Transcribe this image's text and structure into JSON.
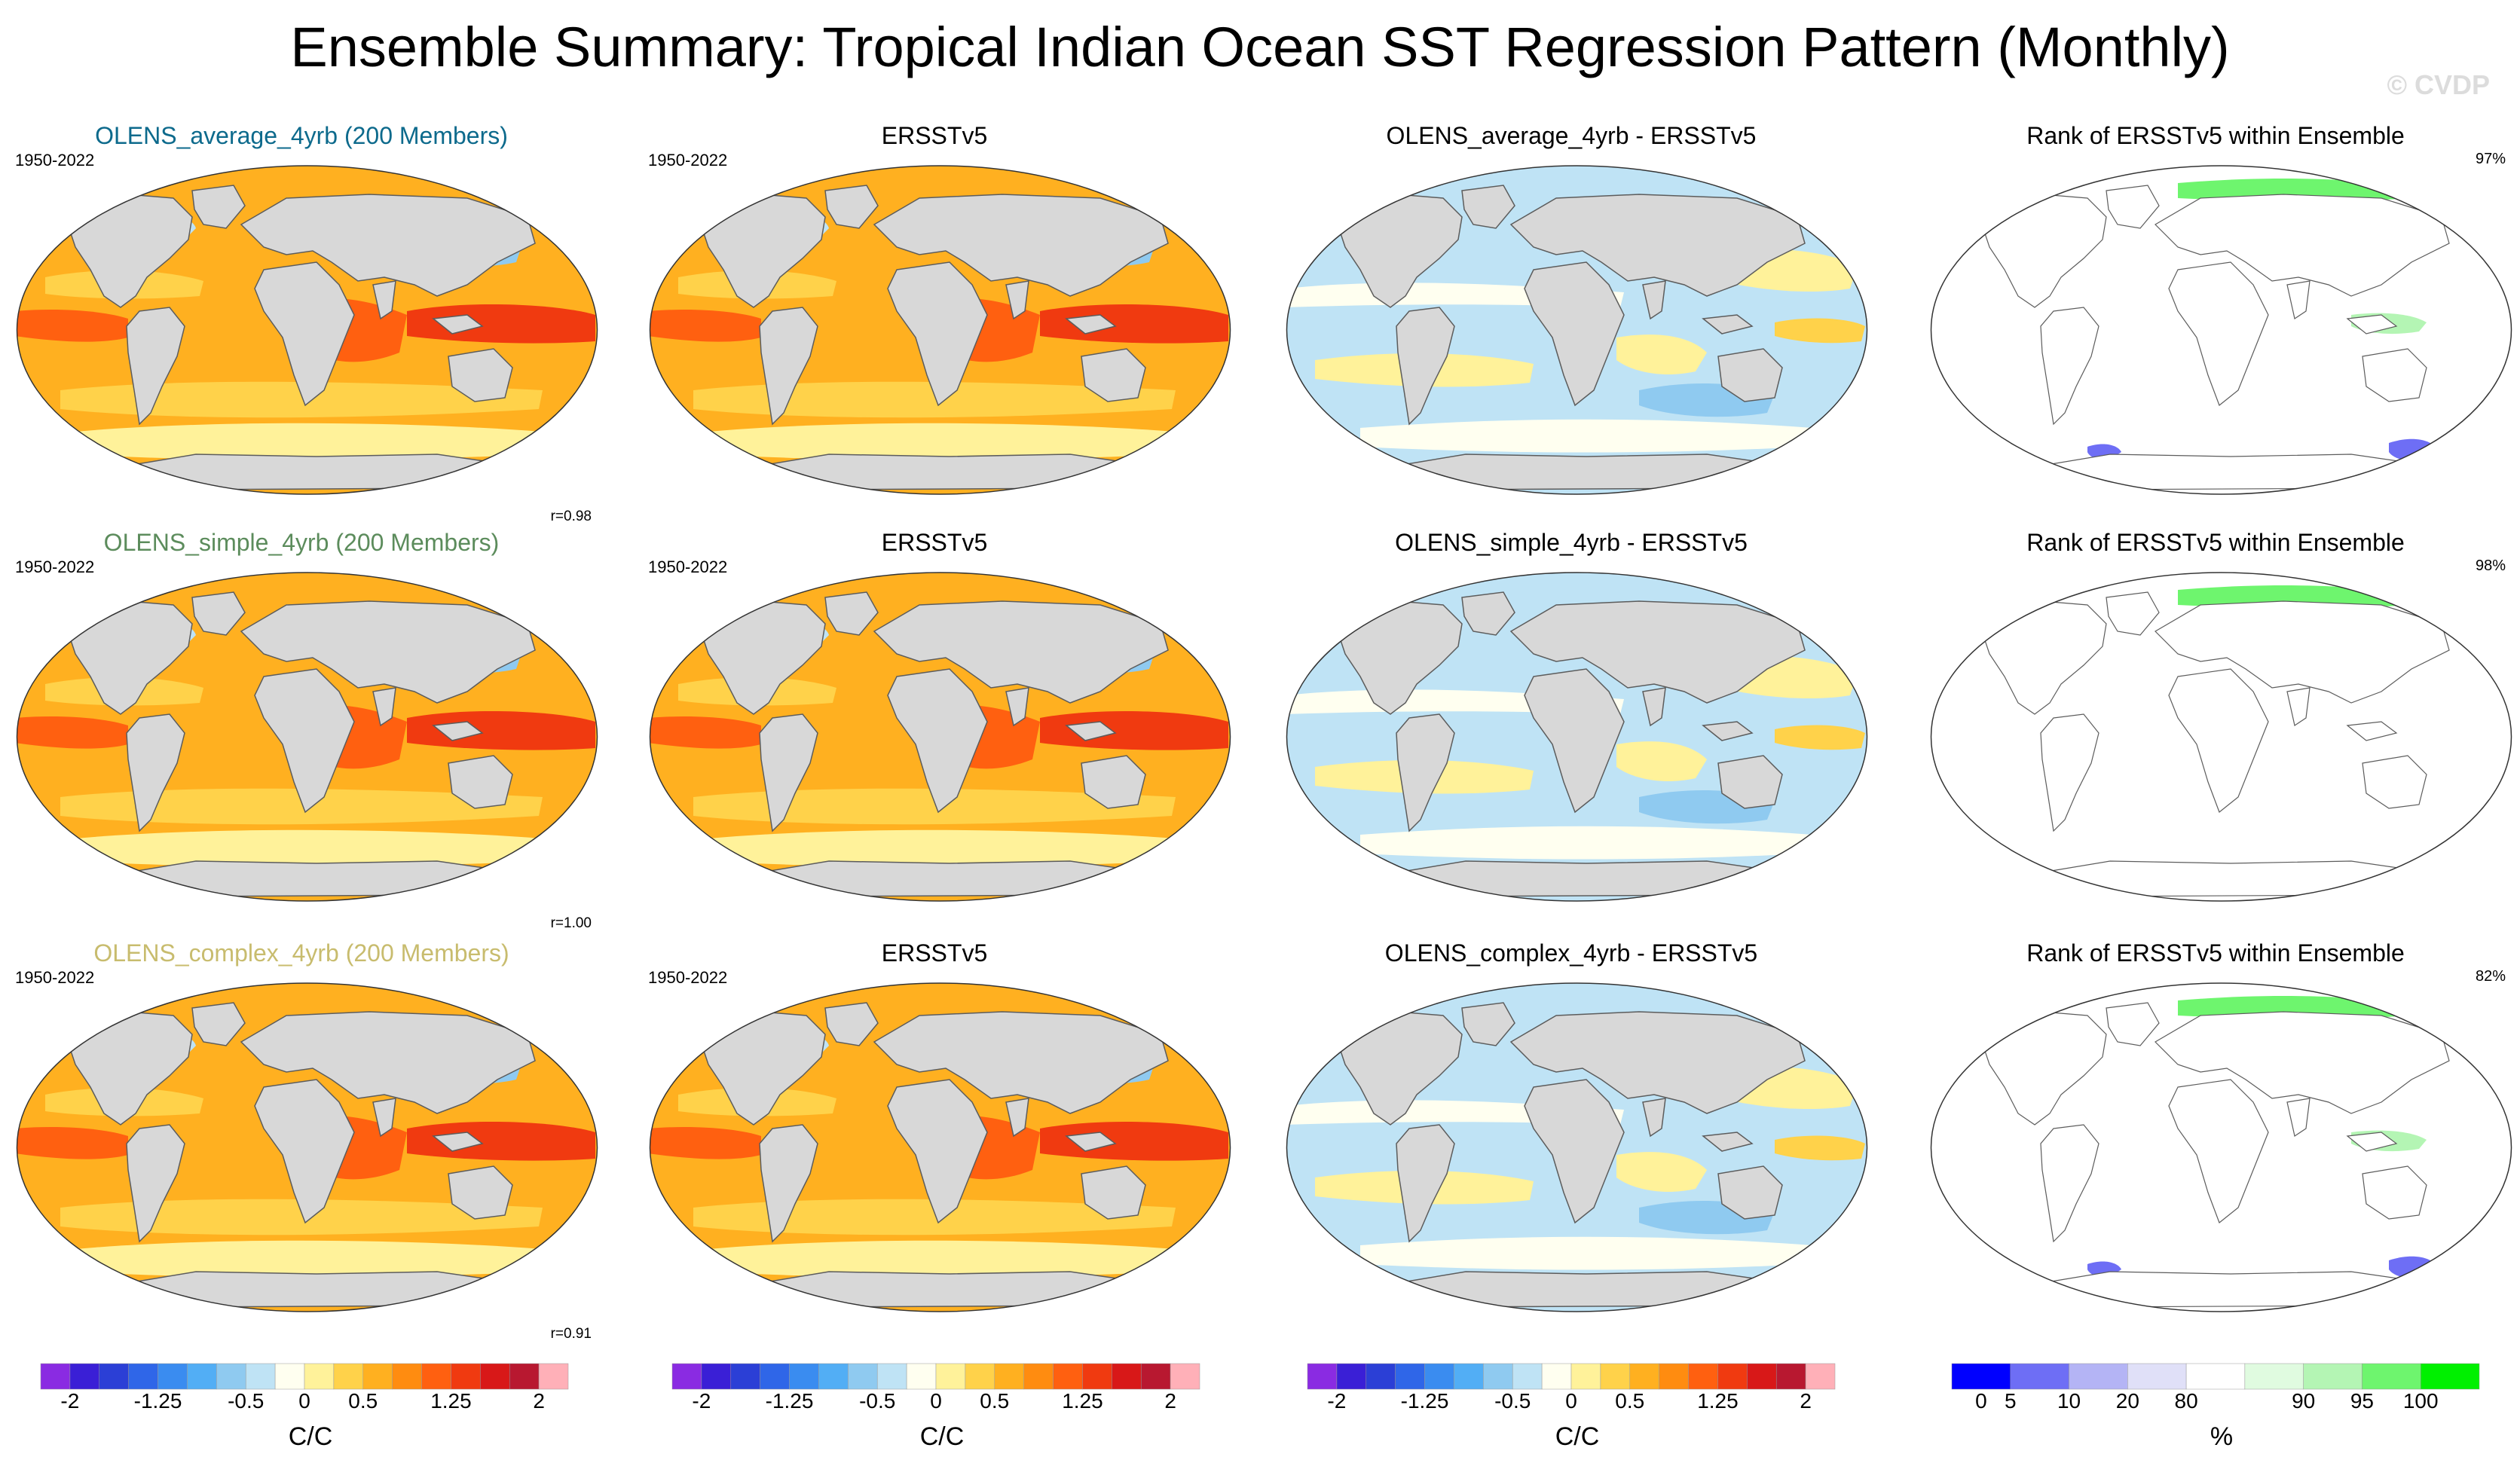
{
  "title": "Ensemble Summary: Tropical Indian Ocean SST Regression Pattern (Monthly)",
  "watermark": "© CVDP",
  "period": "1950-2022",
  "rows": [
    {
      "model": {
        "title": "OLENS_average_4yrb (200 Members)",
        "title_color": "#0d6a8c",
        "corr": "r=0.98"
      },
      "obs": {
        "title": "ERSSTv5"
      },
      "diff": {
        "title": "OLENS_average_4yrb - ERSSTv5"
      },
      "rank": {
        "title": "Rank of ERSSTv5 within Ensemble",
        "percent": "97%"
      }
    },
    {
      "model": {
        "title": "OLENS_simple_4yrb (200 Members)",
        "title_color": "#5c8c5c",
        "corr": "r=1.00"
      },
      "obs": {
        "title": "ERSSTv5"
      },
      "diff": {
        "title": "OLENS_simple_4yrb - ERSSTv5"
      },
      "rank": {
        "title": "Rank of ERSSTv5 within Ensemble",
        "percent": "98%"
      }
    },
    {
      "model": {
        "title": "OLENS_complex_4yrb (200 Members)",
        "title_color": "#c8bc6e",
        "corr": "r=0.91"
      },
      "obs": {
        "title": "ERSSTv5"
      },
      "diff": {
        "title": "OLENS_complex_4yrb - ERSSTv5"
      },
      "rank": {
        "title": "Rank of ERSSTv5 within Ensemble",
        "percent": "82%"
      }
    }
  ],
  "sst_colorbar": {
    "colors": [
      "#8a2be2",
      "#3a1fd6",
      "#2b3fd6",
      "#2f66e8",
      "#3a8cf0",
      "#52aef5",
      "#8fcaf0",
      "#bfe3f5",
      "#fffff0",
      "#fff29a",
      "#ffd24a",
      "#ffb020",
      "#ff8c10",
      "#ff6010",
      "#f03a10",
      "#d81818",
      "#b81830",
      "#ffb0b8"
    ],
    "ticks": [
      "-2",
      "-1.25",
      "-0.5",
      "0",
      "0.5",
      "1.25",
      "2"
    ],
    "tick_positions": [
      1,
      4,
      7,
      9,
      11,
      14,
      17
    ],
    "unit": "C/C"
  },
  "rank_colorbar": {
    "colors": [
      "#0000ff",
      "#6e6ef5",
      "#b4b4f5",
      "#e0e0f8",
      "#ffffff",
      "#e0fbe0",
      "#b4f5b4",
      "#6ef56e",
      "#00f000"
    ],
    "ticks": [
      "0",
      "5",
      "10",
      "20",
      "80",
      "90",
      "95",
      "100"
    ],
    "tick_positions": [
      0.5,
      1,
      2,
      3,
      4,
      6,
      7,
      8
    ],
    "unit": "%"
  },
  "palette": {
    "land": "#d8d8d8",
    "coast": "#5c5c5c",
    "model_levels": [
      "#ff8c10",
      "#ff8c10",
      "#ff8c10"
    ],
    "obs_levels": [
      "#ffb020",
      "#ffb020",
      "#ffb020"
    ]
  }
}
